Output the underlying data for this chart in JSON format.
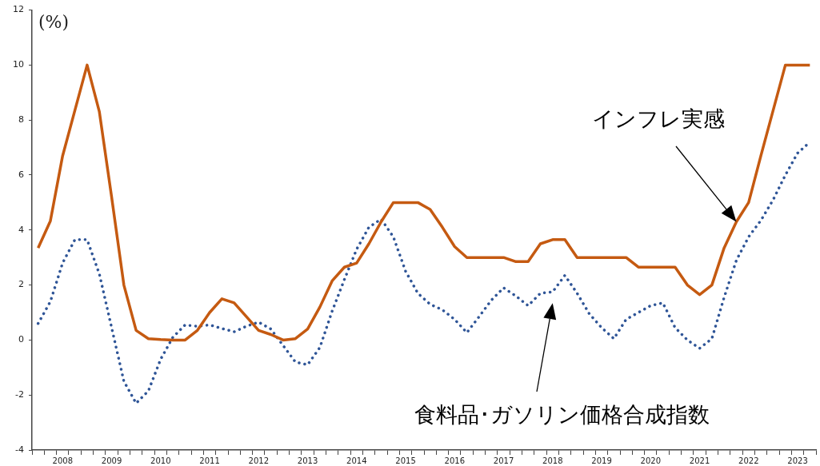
{
  "chart_data": {
    "type": "line",
    "ylabel": "(%)",
    "categories": [
      null,
      null,
      "2008",
      null,
      null,
      null,
      "2009",
      null,
      null,
      null,
      "2010",
      null,
      null,
      null,
      "2011",
      null,
      null,
      null,
      "2012",
      null,
      null,
      null,
      "2013",
      null,
      null,
      null,
      "2014",
      null,
      null,
      null,
      "2015",
      null,
      null,
      null,
      "2016",
      null,
      null,
      null,
      "2017",
      null,
      null,
      null,
      "2018",
      null,
      null,
      null,
      "2019",
      null,
      null,
      null,
      "2020",
      null,
      null,
      null,
      "2021",
      null,
      null,
      null,
      "2022",
      null,
      null,
      null,
      "2023",
      null
    ],
    "series": [
      {
        "name": "インフレ実感",
        "color": "#c55a11",
        "line_style": "solid",
        "values": [
          3.35,
          4.33,
          6.7,
          8.35,
          10,
          8.3,
          5.2,
          2.0,
          0.35,
          0.05,
          0.02,
          0,
          0,
          0.35,
          1.0,
          1.5,
          1.35,
          0.85,
          0.35,
          0.2,
          0,
          0.05,
          0.4,
          1.2,
          2.15,
          2.65,
          2.8,
          3.5,
          4.3,
          5.0,
          5.0,
          5.0,
          4.75,
          4.1,
          3.4,
          3.0,
          3.0,
          3.0,
          3.0,
          2.85,
          2.85,
          3.5,
          3.65,
          3.65,
          3.0,
          3.0,
          3.0,
          3.0,
          3.0,
          2.65,
          2.65,
          2.65,
          2.65,
          2.0,
          1.65,
          2.0,
          3.35,
          4.3,
          5.0,
          6.7,
          8.35,
          10,
          10,
          10
        ]
      },
      {
        "name": "食料品･ガソリン価格合成指数",
        "color": "#2f5597",
        "line_style": "dotted",
        "values": [
          0.6,
          1.4,
          2.8,
          3.65,
          3.65,
          2.4,
          0.45,
          -1.5,
          -2.3,
          -1.85,
          -0.7,
          0.1,
          0.55,
          0.5,
          0.55,
          0.42,
          0.3,
          0.5,
          0.65,
          0.4,
          -0.2,
          -0.8,
          -0.9,
          -0.27,
          1.05,
          2.2,
          3.3,
          4.1,
          4.4,
          3.75,
          2.5,
          1.7,
          1.3,
          1.1,
          0.75,
          0.27,
          0.85,
          1.45,
          1.9,
          1.6,
          1.25,
          1.7,
          1.75,
          2.35,
          1.7,
          0.95,
          0.45,
          0.05,
          0.75,
          1.0,
          1.25,
          1.35,
          0.45,
          0.0,
          -0.3,
          0.05,
          1.55,
          2.9,
          3.75,
          4.35,
          5.1,
          6.0,
          6.8,
          7.2
        ]
      }
    ],
    "ylim": [
      -4,
      12
    ],
    "yticks": [
      -4,
      -2,
      0,
      2,
      4,
      6,
      8,
      10,
      12
    ],
    "grid": false,
    "legend": false,
    "marker": "none"
  }
}
